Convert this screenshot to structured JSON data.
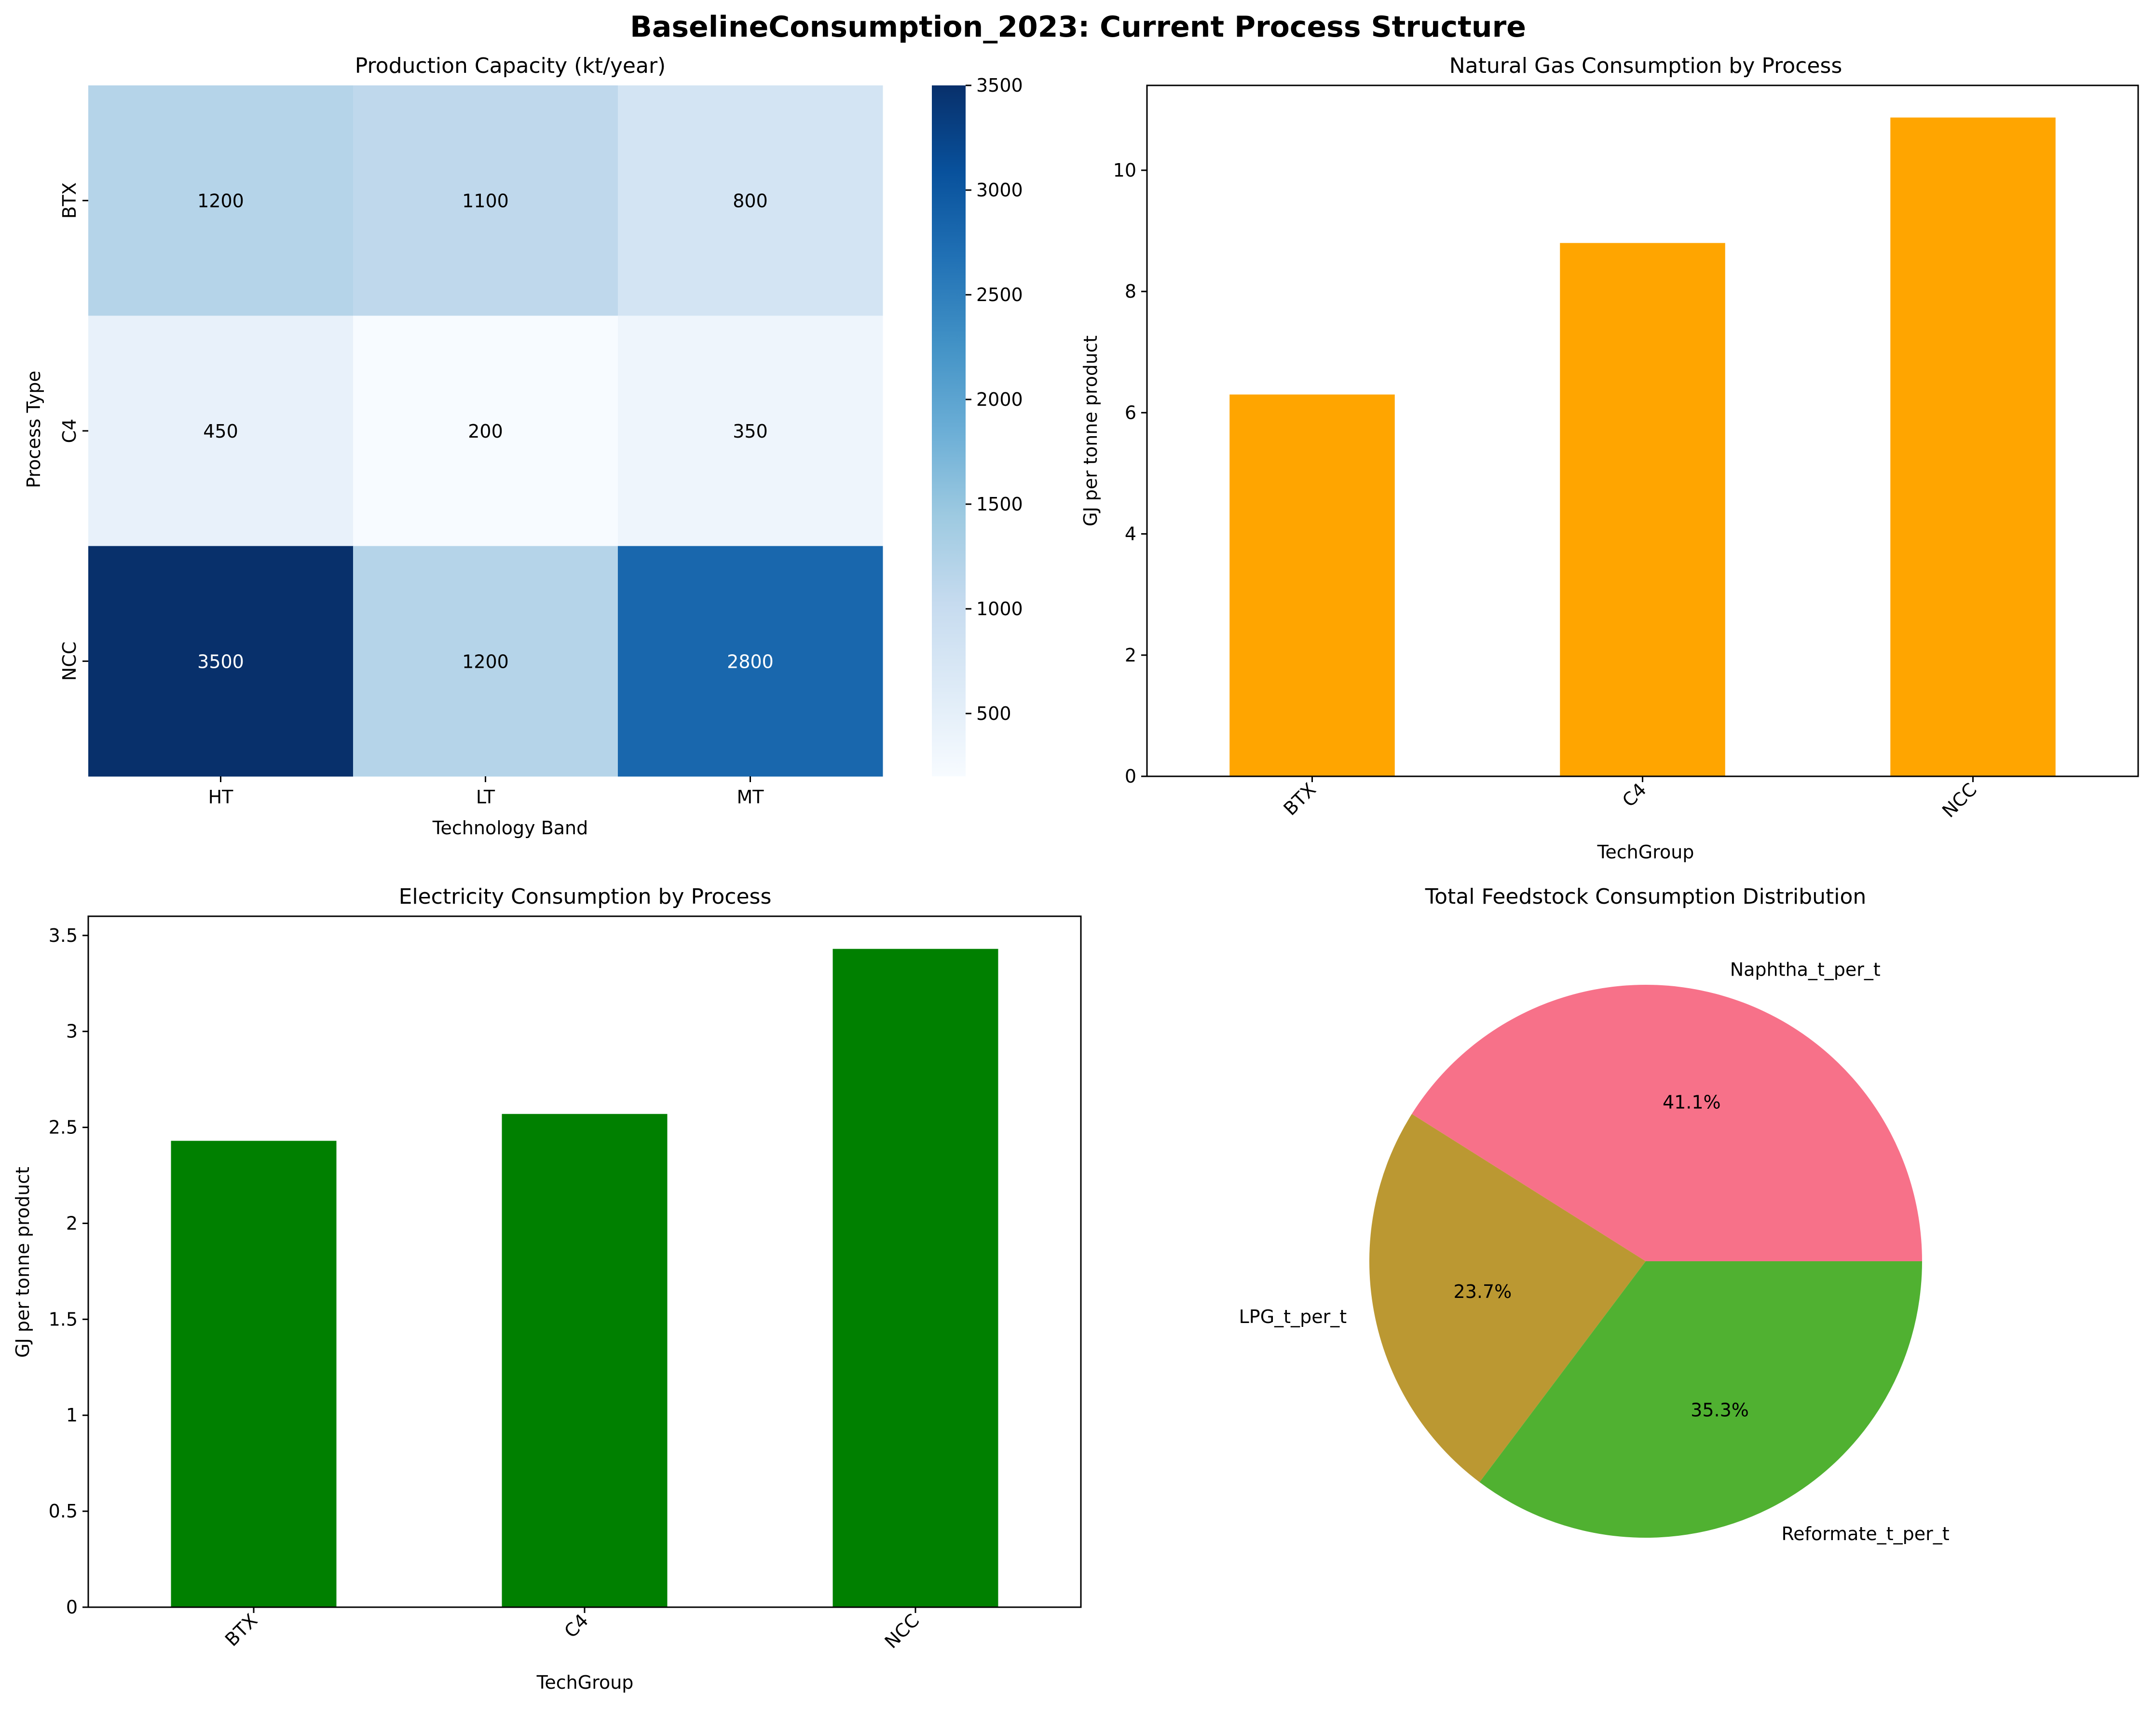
{
  "figure": {
    "title": "BaselineConsumption_2023: Current Process Structure"
  },
  "chart_data": [
    {
      "type": "heatmap",
      "title": "Production Capacity (kt/year)",
      "xlabel": "Technology Band",
      "ylabel": "Process Type",
      "columns": [
        "HT",
        "LT",
        "MT"
      ],
      "rows": [
        "BTX",
        "C4",
        "NCC"
      ],
      "values": [
        [
          1200,
          1100,
          800
        ],
        [
          450,
          200,
          350
        ],
        [
          3500,
          1200,
          2800
        ]
      ],
      "colormap": "Blues",
      "vmin": 200,
      "vmax": 3500,
      "colorbar_ticks": [
        500,
        1000,
        1500,
        2000,
        2500,
        3000,
        3500
      ]
    },
    {
      "type": "bar",
      "title": "Natural Gas Consumption by Process",
      "xlabel": "TechGroup",
      "ylabel": "GJ per tonne product",
      "categories": [
        "BTX",
        "C4",
        "NCC"
      ],
      "values": [
        6.3,
        8.8,
        10.87
      ],
      "ylim": [
        0,
        11.4
      ],
      "yticks": [
        0,
        2,
        4,
        6,
        8,
        10
      ],
      "color": "#ffa500"
    },
    {
      "type": "bar",
      "title": "Electricity Consumption by Process",
      "xlabel": "TechGroup",
      "ylabel": "GJ per tonne product",
      "categories": [
        "BTX",
        "C4",
        "NCC"
      ],
      "values": [
        2.43,
        2.57,
        3.43
      ],
      "ylim": [
        0,
        3.6
      ],
      "yticks": [
        0.0,
        0.5,
        1.0,
        1.5,
        2.0,
        2.5,
        3.0,
        3.5
      ],
      "color": "#008000"
    },
    {
      "type": "pie",
      "title": "Total Feedstock Consumption Distribution",
      "labels": [
        "Naphtha_t_per_t",
        "LPG_t_per_t",
        "Reformate_t_per_t"
      ],
      "values": [
        41.1,
        23.7,
        35.3
      ],
      "pct_labels": [
        "41.1%",
        "23.7%",
        "35.3%"
      ],
      "colors": [
        "#f77189",
        "#bb9832",
        "#50b131"
      ]
    }
  ]
}
